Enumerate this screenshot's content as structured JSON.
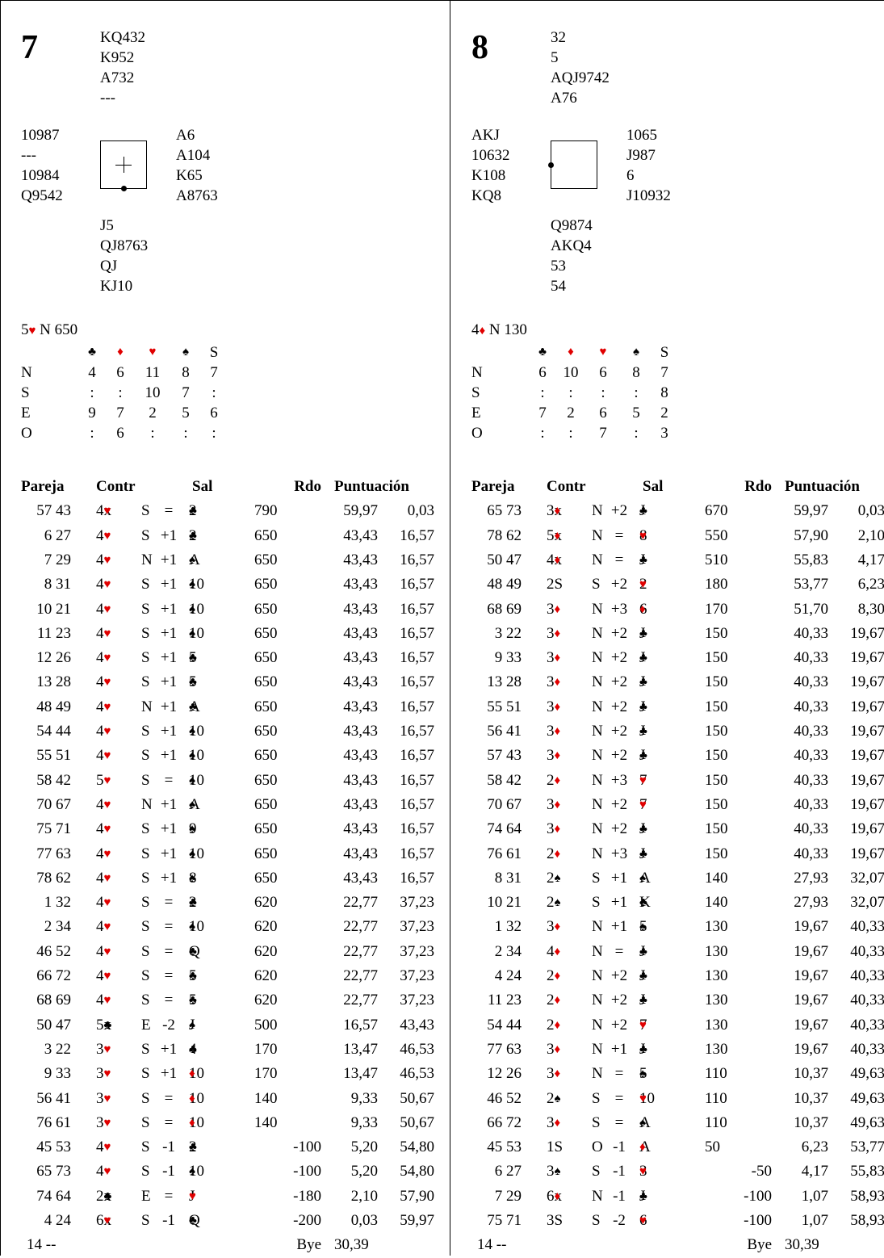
{
  "suit_colors": {
    "hearts": "#e00000",
    "diamonds": "#e00000",
    "clubs": "#000000",
    "spades": "#000000"
  },
  "headers": {
    "pair": "Pareja",
    "contract": "Contr",
    "lead": "Sal",
    "result": "Rdo",
    "score": "Puntuación"
  },
  "dd_suit_headers": [
    "♣",
    "♦",
    "♥",
    "♠",
    "S"
  ],
  "boards": [
    {
      "number": "7",
      "north": [
        "KQ432",
        "K952",
        "A732",
        "---"
      ],
      "west": [
        "10987",
        "---",
        "10984",
        "Q9542"
      ],
      "east": [
        "A6",
        "A104",
        "K65",
        "A8763"
      ],
      "south": [
        "J5",
        "QJ8763",
        "QJ",
        "KJ10"
      ],
      "dealer": "S",
      "vulnerable": "both",
      "par": {
        "level": "5",
        "suit": "♥",
        "rest": " N 650"
      },
      "dd_rows": [
        {
          "seat": "N",
          "vals": [
            "4",
            "6",
            "11",
            "8",
            "7"
          ]
        },
        {
          "seat": "S",
          "vals": [
            ":",
            ":",
            "10",
            "7",
            ":"
          ]
        },
        {
          "seat": "E",
          "vals": [
            "9",
            "7",
            "2",
            "5",
            "6"
          ]
        },
        {
          "seat": "O",
          "vals": [
            ":",
            "6",
            ":",
            ":",
            ":"
          ]
        }
      ],
      "results": [
        {
          "pair": "57 43",
          "contract": "4♥x",
          "decl": "S",
          "res": "=",
          "lead": "♣2",
          "nspos": "790",
          "nsneg": "",
          "score1": "59,97",
          "score2": "0,03"
        },
        {
          "pair": "6 27",
          "contract": "4♥",
          "decl": "S",
          "res": "+1",
          "lead": "♣2",
          "nspos": "650",
          "nsneg": "",
          "score1": "43,43",
          "score2": "16,57"
        },
        {
          "pair": "7 29",
          "contract": "4♥",
          "decl": "N",
          "res": "+1",
          "lead": "♠A",
          "nspos": "650",
          "nsneg": "",
          "score1": "43,43",
          "score2": "16,57"
        },
        {
          "pair": "8 31",
          "contract": "4♥",
          "decl": "S",
          "res": "+1",
          "lead": "♠10",
          "nspos": "650",
          "nsneg": "",
          "score1": "43,43",
          "score2": "16,57"
        },
        {
          "pair": "10 21",
          "contract": "4♥",
          "decl": "S",
          "res": "+1",
          "lead": "♠10",
          "nspos": "650",
          "nsneg": "",
          "score1": "43,43",
          "score2": "16,57"
        },
        {
          "pair": "11 23",
          "contract": "4♥",
          "decl": "S",
          "res": "+1",
          "lead": "♠10",
          "nspos": "650",
          "nsneg": "",
          "score1": "43,43",
          "score2": "16,57"
        },
        {
          "pair": "12 26",
          "contract": "4♥",
          "decl": "S",
          "res": "+1",
          "lead": "♣5",
          "nspos": "650",
          "nsneg": "",
          "score1": "43,43",
          "score2": "16,57"
        },
        {
          "pair": "13 28",
          "contract": "4♥",
          "decl": "S",
          "res": "+1",
          "lead": "♣5",
          "nspos": "650",
          "nsneg": "",
          "score1": "43,43",
          "score2": "16,57"
        },
        {
          "pair": "48 49",
          "contract": "4♥",
          "decl": "N",
          "res": "+1",
          "lead": "♣A",
          "nspos": "650",
          "nsneg": "",
          "score1": "43,43",
          "score2": "16,57"
        },
        {
          "pair": "54 44",
          "contract": "4♥",
          "decl": "S",
          "res": "+1",
          "lead": "♠10",
          "nspos": "650",
          "nsneg": "",
          "score1": "43,43",
          "score2": "16,57"
        },
        {
          "pair": "55 51",
          "contract": "4♥",
          "decl": "S",
          "res": "+1",
          "lead": "♠10",
          "nspos": "650",
          "nsneg": "",
          "score1": "43,43",
          "score2": "16,57"
        },
        {
          "pair": "58 42",
          "contract": "5♥",
          "decl": "S",
          "res": "=",
          "lead": "♠10",
          "nspos": "650",
          "nsneg": "",
          "score1": "43,43",
          "score2": "16,57"
        },
        {
          "pair": "70 67",
          "contract": "4♥",
          "decl": "N",
          "res": "+1",
          "lead": "♠A",
          "nspos": "650",
          "nsneg": "",
          "score1": "43,43",
          "score2": "16,57"
        },
        {
          "pair": "75 71",
          "contract": "4♥",
          "decl": "S",
          "res": "+1",
          "lead": "♠9",
          "nspos": "650",
          "nsneg": "",
          "score1": "43,43",
          "score2": "16,57"
        },
        {
          "pair": "77 63",
          "contract": "4♥",
          "decl": "S",
          "res": "+1",
          "lead": "♠10",
          "nspos": "650",
          "nsneg": "",
          "score1": "43,43",
          "score2": "16,57"
        },
        {
          "pair": "78 62",
          "contract": "4♥",
          "decl": "S",
          "res": "+1",
          "lead": "♠8",
          "nspos": "650",
          "nsneg": "",
          "score1": "43,43",
          "score2": "16,57"
        },
        {
          "pair": "1 32",
          "contract": "4♥",
          "decl": "S",
          "res": "=",
          "lead": "♣2",
          "nspos": "620",
          "nsneg": "",
          "score1": "22,77",
          "score2": "37,23"
        },
        {
          "pair": "2 34",
          "contract": "4♥",
          "decl": "S",
          "res": "=",
          "lead": "♠10",
          "nspos": "620",
          "nsneg": "",
          "score1": "22,77",
          "score2": "37,23"
        },
        {
          "pair": "46 52",
          "contract": "4♥",
          "decl": "S",
          "res": "=",
          "lead": "♣Q",
          "nspos": "620",
          "nsneg": "",
          "score1": "22,77",
          "score2": "37,23"
        },
        {
          "pair": "66 72",
          "contract": "4♥",
          "decl": "S",
          "res": "=",
          "lead": "♣5",
          "nspos": "620",
          "nsneg": "",
          "score1": "22,77",
          "score2": "37,23"
        },
        {
          "pair": "68 69",
          "contract": "4♥",
          "decl": "S",
          "res": "=",
          "lead": "♣5",
          "nspos": "620",
          "nsneg": "",
          "score1": "22,77",
          "score2": "37,23"
        },
        {
          "pair": "50 47",
          "contract": "5♣x",
          "decl": "E",
          "res": "-2",
          "lead": "♠J",
          "nspos": "500",
          "nsneg": "",
          "score1": "16,57",
          "score2": "43,43"
        },
        {
          "pair": "3 22",
          "contract": "3♥",
          "decl": "S",
          "res": "+1",
          "lead": "♣4",
          "nspos": "170",
          "nsneg": "",
          "score1": "13,47",
          "score2": "46,53"
        },
        {
          "pair": "9 33",
          "contract": "3♥",
          "decl": "S",
          "res": "+1",
          "lead": "♦10",
          "nspos": "170",
          "nsneg": "",
          "score1": "13,47",
          "score2": "46,53"
        },
        {
          "pair": "56 41",
          "contract": "3♥",
          "decl": "S",
          "res": "=",
          "lead": "♦10",
          "nspos": "140",
          "nsneg": "",
          "score1": "9,33",
          "score2": "50,67"
        },
        {
          "pair": "76 61",
          "contract": "3♥",
          "decl": "S",
          "res": "=",
          "lead": "♦10",
          "nspos": "140",
          "nsneg": "",
          "score1": "9,33",
          "score2": "50,67"
        },
        {
          "pair": "45 53",
          "contract": "4♥",
          "decl": "S",
          "res": "-1",
          "lead": "♣2",
          "nspos": "",
          "nsneg": "-100",
          "score1": "5,20",
          "score2": "54,80"
        },
        {
          "pair": "65 73",
          "contract": "4♥",
          "decl": "S",
          "res": "-1",
          "lead": "♠10",
          "nspos": "",
          "nsneg": "-100",
          "score1": "5,20",
          "score2": "54,80"
        },
        {
          "pair": "74 64",
          "contract": "2♣x",
          "decl": "E",
          "res": "=",
          "lead": "♥J",
          "nspos": "",
          "nsneg": "-180",
          "score1": "2,10",
          "score2": "57,90"
        },
        {
          "pair": "4 24",
          "contract": "6♥x",
          "decl": "S",
          "res": "-1",
          "lead": "♣Q",
          "nspos": "",
          "nsneg": "-200",
          "score1": "0,03",
          "score2": "59,97"
        }
      ],
      "bye": {
        "pair": "14 --",
        "label": "Bye",
        "score": "30,39"
      }
    },
    {
      "number": "8",
      "north": [
        "32",
        "5",
        "AQJ9742",
        "A76"
      ],
      "west": [
        "AKJ",
        "10632",
        "K108",
        "KQ8"
      ],
      "east": [
        "1065",
        "J987",
        "6",
        "J10932"
      ],
      "south": [
        "Q9874",
        "AKQ4",
        "53",
        "54"
      ],
      "dealer": "O",
      "vulnerable": "none",
      "par": {
        "level": "4",
        "suit": "♦",
        "rest": " N 130"
      },
      "dd_rows": [
        {
          "seat": "N",
          "vals": [
            "6",
            "10",
            "6",
            "8",
            "7"
          ]
        },
        {
          "seat": "S",
          "vals": [
            ":",
            ":",
            ":",
            ":",
            "8"
          ]
        },
        {
          "seat": "E",
          "vals": [
            "7",
            "2",
            "6",
            "5",
            "2"
          ]
        },
        {
          "seat": "O",
          "vals": [
            ":",
            ":",
            "7",
            ":",
            "3"
          ]
        }
      ],
      "results": [
        {
          "pair": "65 73",
          "contract": "3♦x",
          "decl": "N",
          "res": "+2",
          "lead": "♣J",
          "nspos": "670",
          "nsneg": "",
          "score1": "59,97",
          "score2": "0,03"
        },
        {
          "pair": "78 62",
          "contract": "5♦x",
          "decl": "N",
          "res": "=",
          "lead": "♥8",
          "nspos": "550",
          "nsneg": "",
          "score1": "57,90",
          "score2": "2,10"
        },
        {
          "pair": "50 47",
          "contract": "4♦x",
          "decl": "N",
          "res": "=",
          "lead": "♣J",
          "nspos": "510",
          "nsneg": "",
          "score1": "55,83",
          "score2": "4,17"
        },
        {
          "pair": "48 49",
          "contract": "2S",
          "decl": "S",
          "res": "+2",
          "lead": "♥2",
          "nspos": "180",
          "nsneg": "",
          "score1": "53,77",
          "score2": "6,23"
        },
        {
          "pair": "68 69",
          "contract": "3♦",
          "decl": "N",
          "res": "+3",
          "lead": "♦6",
          "nspos": "170",
          "nsneg": "",
          "score1": "51,70",
          "score2": "8,30"
        },
        {
          "pair": "3 22",
          "contract": "3♦",
          "decl": "N",
          "res": "+2",
          "lead": "♣J",
          "nspos": "150",
          "nsneg": "",
          "score1": "40,33",
          "score2": "19,67"
        },
        {
          "pair": "9 33",
          "contract": "3♦",
          "decl": "N",
          "res": "+2",
          "lead": "♣J",
          "nspos": "150",
          "nsneg": "",
          "score1": "40,33",
          "score2": "19,67"
        },
        {
          "pair": "13 28",
          "contract": "3♦",
          "decl": "N",
          "res": "+2",
          "lead": "♣J",
          "nspos": "150",
          "nsneg": "",
          "score1": "40,33",
          "score2": "19,67"
        },
        {
          "pair": "55 51",
          "contract": "3♦",
          "decl": "N",
          "res": "+2",
          "lead": "♣J",
          "nspos": "150",
          "nsneg": "",
          "score1": "40,33",
          "score2": "19,67"
        },
        {
          "pair": "56 41",
          "contract": "3♦",
          "decl": "N",
          "res": "+2",
          "lead": "♣J",
          "nspos": "150",
          "nsneg": "",
          "score1": "40,33",
          "score2": "19,67"
        },
        {
          "pair": "57 43",
          "contract": "3♦",
          "decl": "N",
          "res": "+2",
          "lead": "♣J",
          "nspos": "150",
          "nsneg": "",
          "score1": "40,33",
          "score2": "19,67"
        },
        {
          "pair": "58 42",
          "contract": "2♦",
          "decl": "N",
          "res": "+3",
          "lead": "♥7",
          "nspos": "150",
          "nsneg": "",
          "score1": "40,33",
          "score2": "19,67"
        },
        {
          "pair": "70 67",
          "contract": "3♦",
          "decl": "N",
          "res": "+2",
          "lead": "♥7",
          "nspos": "150",
          "nsneg": "",
          "score1": "40,33",
          "score2": "19,67"
        },
        {
          "pair": "74 64",
          "contract": "3♦",
          "decl": "N",
          "res": "+2",
          "lead": "♣J",
          "nspos": "150",
          "nsneg": "",
          "score1": "40,33",
          "score2": "19,67"
        },
        {
          "pair": "76 61",
          "contract": "2♦",
          "decl": "N",
          "res": "+3",
          "lead": "♣J",
          "nspos": "150",
          "nsneg": "",
          "score1": "40,33",
          "score2": "19,67"
        },
        {
          "pair": "8 31",
          "contract": "2♠",
          "decl": "S",
          "res": "+1",
          "lead": "♠A",
          "nspos": "140",
          "nsneg": "",
          "score1": "27,93",
          "score2": "32,07"
        },
        {
          "pair": "10 21",
          "contract": "2♠",
          "decl": "S",
          "res": "+1",
          "lead": "♣K",
          "nspos": "140",
          "nsneg": "",
          "score1": "27,93",
          "score2": "32,07"
        },
        {
          "pair": "1 32",
          "contract": "3♦",
          "decl": "N",
          "res": "+1",
          "lead": "♠5",
          "nspos": "130",
          "nsneg": "",
          "score1": "19,67",
          "score2": "40,33"
        },
        {
          "pair": "2 34",
          "contract": "4♦",
          "decl": "N",
          "res": "=",
          "lead": "♣J",
          "nspos": "130",
          "nsneg": "",
          "score1": "19,67",
          "score2": "40,33"
        },
        {
          "pair": "4 24",
          "contract": "2♦",
          "decl": "N",
          "res": "+2",
          "lead": "♣J",
          "nspos": "130",
          "nsneg": "",
          "score1": "19,67",
          "score2": "40,33"
        },
        {
          "pair": "11 23",
          "contract": "2♦",
          "decl": "N",
          "res": "+2",
          "lead": "♣J",
          "nspos": "130",
          "nsneg": "",
          "score1": "19,67",
          "score2": "40,33"
        },
        {
          "pair": "54 44",
          "contract": "2♦",
          "decl": "N",
          "res": "+2",
          "lead": "♥7",
          "nspos": "130",
          "nsneg": "",
          "score1": "19,67",
          "score2": "40,33"
        },
        {
          "pair": "77 63",
          "contract": "3♦",
          "decl": "N",
          "res": "+1",
          "lead": "♣J",
          "nspos": "130",
          "nsneg": "",
          "score1": "19,67",
          "score2": "40,33"
        },
        {
          "pair": "12 26",
          "contract": "3♦",
          "decl": "N",
          "res": "=",
          "lead": "♠5",
          "nspos": "110",
          "nsneg": "",
          "score1": "10,37",
          "score2": "49,63"
        },
        {
          "pair": "46 52",
          "contract": "2♠",
          "decl": "S",
          "res": "=",
          "lead": "♥10",
          "nspos": "110",
          "nsneg": "",
          "score1": "10,37",
          "score2": "49,63"
        },
        {
          "pair": "66 72",
          "contract": "3♦",
          "decl": "S",
          "res": "=",
          "lead": "♠A",
          "nspos": "110",
          "nsneg": "",
          "score1": "10,37",
          "score2": "49,63"
        },
        {
          "pair": "45 53",
          "contract": "1S",
          "decl": "O",
          "res": "-1",
          "lead": "♦A",
          "nspos": "50",
          "nsneg": "",
          "score1": "6,23",
          "score2": "53,77"
        },
        {
          "pair": "6 27",
          "contract": "3♠",
          "decl": "S",
          "res": "-1",
          "lead": "♥3",
          "nspos": "",
          "nsneg": "-50",
          "score1": "4,17",
          "score2": "55,83"
        },
        {
          "pair": "7 29",
          "contract": "6♦x",
          "decl": "N",
          "res": "-1",
          "lead": "♣J",
          "nspos": "",
          "nsneg": "-100",
          "score1": "1,07",
          "score2": "58,93"
        },
        {
          "pair": "75 71",
          "contract": "3S",
          "decl": "S",
          "res": "-2",
          "lead": "♥6",
          "nspos": "",
          "nsneg": "-100",
          "score1": "1,07",
          "score2": "58,93"
        }
      ],
      "bye": {
        "pair": "14 --",
        "label": "Bye",
        "score": "30,39"
      }
    }
  ]
}
